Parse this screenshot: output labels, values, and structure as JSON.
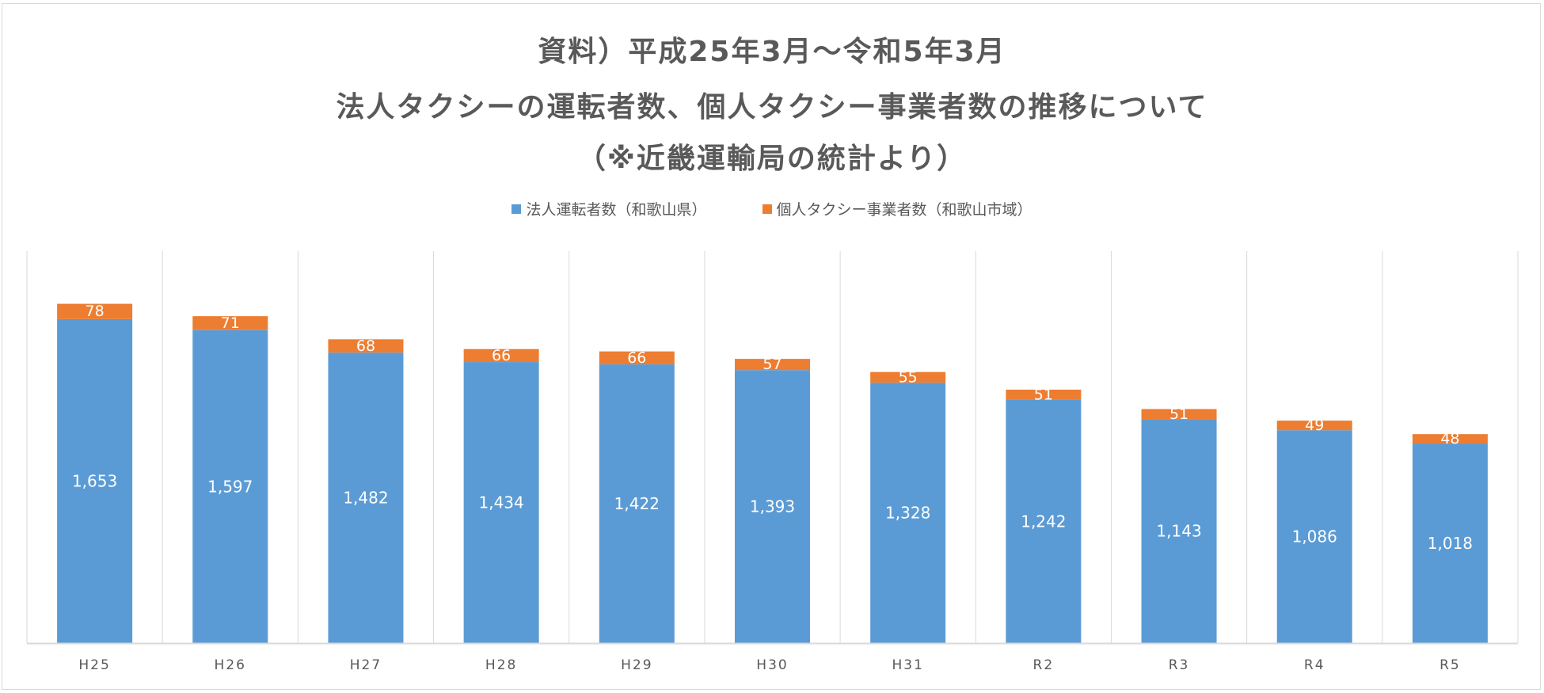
{
  "chart_data": {
    "type": "bar",
    "stacked": true,
    "title": [
      "資料）平成25年3月～令和5年3月",
      "法人タクシーの運転者数、個人タクシー事業者数の推移について",
      "（※近畿運輸局の統計より）"
    ],
    "categories": [
      "H25",
      "H26",
      "H27",
      "H28",
      "H29",
      "H30",
      "H31",
      "R2",
      "R3",
      "R4",
      "R5"
    ],
    "series": [
      {
        "name": "法人運転者数（和歌山県）",
        "color": "#5b9bd5",
        "values": [
          1653,
          1597,
          1482,
          1434,
          1422,
          1393,
          1328,
          1242,
          1143,
          1086,
          1018
        ],
        "labels": [
          "1,653",
          "1,597",
          "1,482",
          "1,434",
          "1,422",
          "1,393",
          "1,328",
          "1,242",
          "1,143",
          "1,086",
          "1,018"
        ]
      },
      {
        "name": "個人タクシー事業者数（和歌山市域）",
        "color": "#ed7d31",
        "values": [
          78,
          71,
          68,
          66,
          66,
          57,
          55,
          51,
          51,
          49,
          48
        ],
        "labels": [
          "78",
          "71",
          "68",
          "66",
          "66",
          "57",
          "55",
          "51",
          "51",
          "49",
          "48"
        ]
      }
    ],
    "xlabel": "",
    "ylabel": "",
    "ylim": [
      0,
      2000
    ],
    "grid": "vertical category separators",
    "legend": "top-center"
  }
}
